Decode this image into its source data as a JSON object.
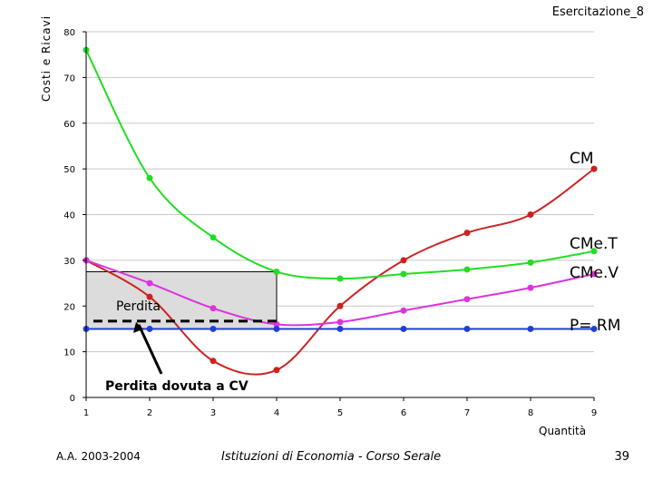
{
  "header": {
    "title": "Esercitazione_8"
  },
  "footer": {
    "left": "A.A. 2003-2004",
    "center": "Istituzioni di Economia  -  Corso Serale",
    "page": "39"
  },
  "chart_data": {
    "type": "line",
    "title": "",
    "xlabel": "Quantità",
    "ylabel": "Costi e Ricavi",
    "xlim": [
      1,
      9
    ],
    "ylim": [
      0,
      80
    ],
    "x_ticks": [
      "1",
      "2",
      "3",
      "4",
      "5",
      "6",
      "7",
      "8",
      "9"
    ],
    "y_ticks": [
      "0",
      "10",
      "20",
      "30",
      "40",
      "50",
      "60",
      "70",
      "80"
    ],
    "x": [
      1,
      2,
      3,
      4,
      5,
      6,
      7,
      8,
      9
    ],
    "series": [
      {
        "name": "CM",
        "color": "#cc2222",
        "values": [
          30,
          22,
          8,
          6,
          20,
          30,
          36,
          40,
          50
        ]
      },
      {
        "name": "CMe.T",
        "color": "#22dd22",
        "values": [
          76,
          48,
          35,
          27.5,
          26,
          27,
          28,
          29.5,
          32
        ]
      },
      {
        "name": "CMe.V",
        "color": "#dd33dd",
        "values": [
          30,
          25,
          19.5,
          16,
          16.5,
          19,
          21.5,
          24,
          27
        ]
      },
      {
        "name": "P= RM",
        "color": "#1f3fd6",
        "values": [
          15,
          15,
          15,
          15,
          15,
          15,
          15,
          15,
          15
        ]
      }
    ],
    "annotations": {
      "loss_label": "Perdita",
      "cv_loss_label": "Perdita dovuta a CV",
      "loss_box": {
        "x_from": 1,
        "x_to": 4,
        "y_from": 15,
        "y_to": 27.5
      },
      "cv_line_y": 16.7
    },
    "grid": "horizontal",
    "legend": "none"
  }
}
